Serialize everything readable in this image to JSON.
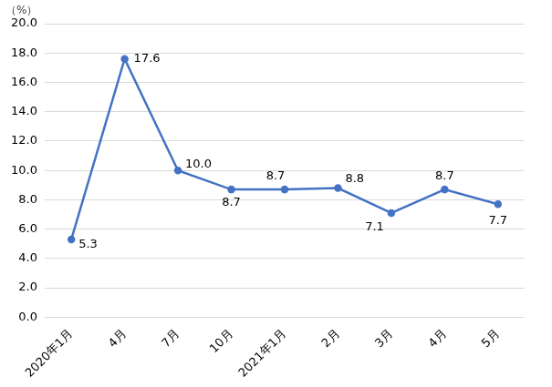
{
  "chart_data": {
    "type": "line",
    "y_label": "（%）",
    "categories": [
      "2020年1月",
      "4月",
      "7月",
      "10月",
      "2021年1月",
      "2月",
      "3月",
      "4月",
      "5月"
    ],
    "values": [
      5.3,
      17.6,
      10.0,
      8.7,
      8.7,
      8.8,
      7.1,
      8.7,
      7.7
    ],
    "value_labels": [
      "5.3",
      "17.6",
      "10.0",
      "8.7",
      "8.7",
      "8.8",
      "7.1",
      "8.7",
      "7.7"
    ],
    "color": "#4472c4",
    "marker": "circle",
    "data_labels": true,
    "ylim": [
      0,
      20
    ],
    "yticks": [
      {
        "value": 0,
        "label": "0.0"
      },
      {
        "value": 2,
        "label": "2.0"
      },
      {
        "value": 4,
        "label": "4.0"
      },
      {
        "value": 6,
        "label": "6.0"
      },
      {
        "value": 8,
        "label": "8.0"
      },
      {
        "value": 10,
        "label": "10.0"
      },
      {
        "value": 12,
        "label": "12.0"
      },
      {
        "value": 14,
        "label": "14.0"
      },
      {
        "value": 16,
        "label": "16.0"
      },
      {
        "value": 18,
        "label": "18.0"
      },
      {
        "value": 20,
        "label": "20.0"
      }
    ],
    "grid": true
  }
}
